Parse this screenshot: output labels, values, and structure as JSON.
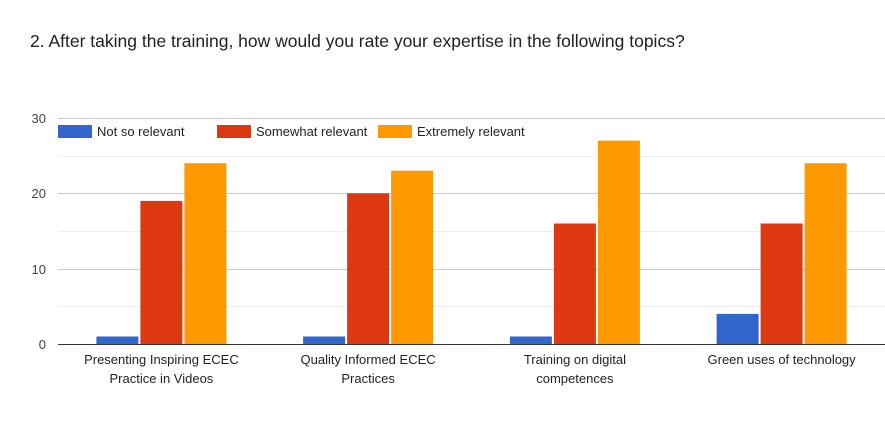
{
  "question": "2. After taking the training, how would you rate your expertise in the following topics?",
  "chart_data": {
    "type": "bar",
    "title": "2. After taking the training, how would you rate your expertise in the following topics?",
    "categories": [
      [
        "Presenting Inspiring ECEC",
        "Practice in Videos"
      ],
      [
        "Quality Informed ECEC",
        "Practices"
      ],
      [
        "Training on digital",
        "competences"
      ],
      [
        "Green uses of technology"
      ]
    ],
    "series": [
      {
        "name": "Not so relevant",
        "color": "#3366cc",
        "values": [
          1,
          1,
          1,
          4
        ]
      },
      {
        "name": "Somewhat relevant",
        "color": "#dc3912",
        "values": [
          19,
          20,
          16,
          16
        ]
      },
      {
        "name": "Extremely relevant",
        "color": "#ff9900",
        "values": [
          24,
          23,
          27,
          24
        ]
      }
    ],
    "ylim": [
      0,
      30
    ],
    "yticks": [
      0,
      10,
      20,
      30
    ],
    "grid": true,
    "legend_position": "top-left"
  }
}
